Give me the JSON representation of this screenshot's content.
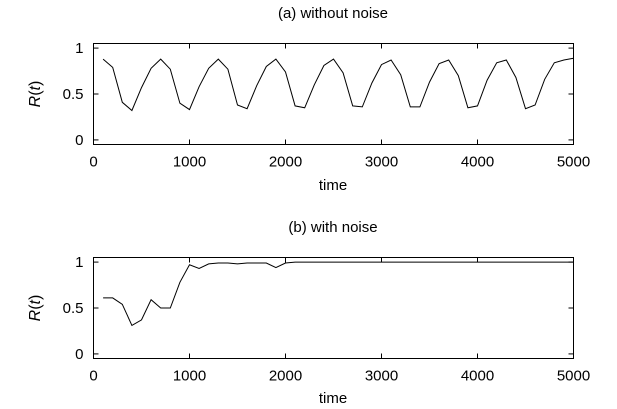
{
  "chart_data": [
    {
      "type": "line",
      "title": "(a) without noise",
      "xlabel": "time",
      "ylabel": "R(t)",
      "xlim": [
        0,
        5000
      ],
      "ylim": [
        -0.05,
        1.05
      ],
      "xticks": [
        0,
        1000,
        2000,
        3000,
        4000,
        5000
      ],
      "yticks": [
        0,
        0.5,
        1
      ],
      "ytick_labels": [
        "0",
        "0.5",
        "1"
      ],
      "grid": false,
      "series": [
        {
          "x": [
            100,
            200,
            300,
            400,
            500,
            600,
            700,
            800,
            900,
            1000,
            1100,
            1200,
            1300,
            1400,
            1500,
            1600,
            1700,
            1800,
            1900,
            2000,
            2100,
            2200,
            2300,
            2400,
            2500,
            2600,
            2700,
            2800,
            2900,
            3000,
            3100,
            3200,
            3300,
            3400,
            3500,
            3600,
            3700,
            3800,
            3900,
            4000,
            4100,
            4200,
            4300,
            4400,
            4500,
            4600,
            4700,
            4800,
            4900,
            5000
          ],
          "y": [
            0.88,
            0.79,
            0.41,
            0.32,
            0.57,
            0.78,
            0.88,
            0.77,
            0.4,
            0.33,
            0.58,
            0.78,
            0.88,
            0.77,
            0.38,
            0.34,
            0.59,
            0.8,
            0.88,
            0.74,
            0.37,
            0.35,
            0.6,
            0.81,
            0.88,
            0.73,
            0.37,
            0.36,
            0.62,
            0.82,
            0.87,
            0.71,
            0.36,
            0.36,
            0.63,
            0.83,
            0.87,
            0.7,
            0.35,
            0.37,
            0.65,
            0.84,
            0.87,
            0.68,
            0.34,
            0.38,
            0.66,
            0.84,
            0.87,
            0.89
          ]
        }
      ]
    },
    {
      "type": "line",
      "title": "(b) with noise",
      "xlabel": "time",
      "ylabel": "R(t)",
      "xlim": [
        0,
        5000
      ],
      "ylim": [
        -0.05,
        1.05
      ],
      "xticks": [
        0,
        1000,
        2000,
        3000,
        4000,
        5000
      ],
      "yticks": [
        0,
        0.5,
        1
      ],
      "ytick_labels": [
        "0",
        "0.5",
        "1"
      ],
      "grid": false,
      "series": [
        {
          "x": [
            100,
            200,
            300,
            400,
            500,
            600,
            700,
            800,
            900,
            1000,
            1100,
            1200,
            1300,
            1400,
            1500,
            1600,
            1700,
            1800,
            1900,
            2000,
            2100,
            2200,
            2300,
            2400,
            2500,
            2600,
            2700,
            2800,
            2900,
            3000,
            3100,
            3200,
            3300,
            3400,
            3500,
            3600,
            3700,
            3800,
            3900,
            4000,
            4100,
            4200,
            4300,
            4400,
            4500,
            4600,
            4700,
            4800,
            4900,
            5000
          ],
          "y": [
            0.61,
            0.61,
            0.54,
            0.31,
            0.37,
            0.59,
            0.5,
            0.5,
            0.78,
            0.97,
            0.93,
            0.98,
            0.99,
            0.99,
            0.98,
            0.99,
            0.99,
            0.99,
            0.94,
            0.99,
            1.0,
            1.0,
            1.0,
            1.0,
            1.0,
            1.0,
            1.0,
            1.0,
            1.0,
            1.0,
            1.0,
            1.0,
            1.0,
            1.0,
            1.0,
            1.0,
            1.0,
            1.0,
            1.0,
            1.0,
            1.0,
            1.0,
            1.0,
            1.0,
            1.0,
            1.0,
            1.0,
            1.0,
            1.0,
            1.0
          ]
        }
      ]
    }
  ]
}
